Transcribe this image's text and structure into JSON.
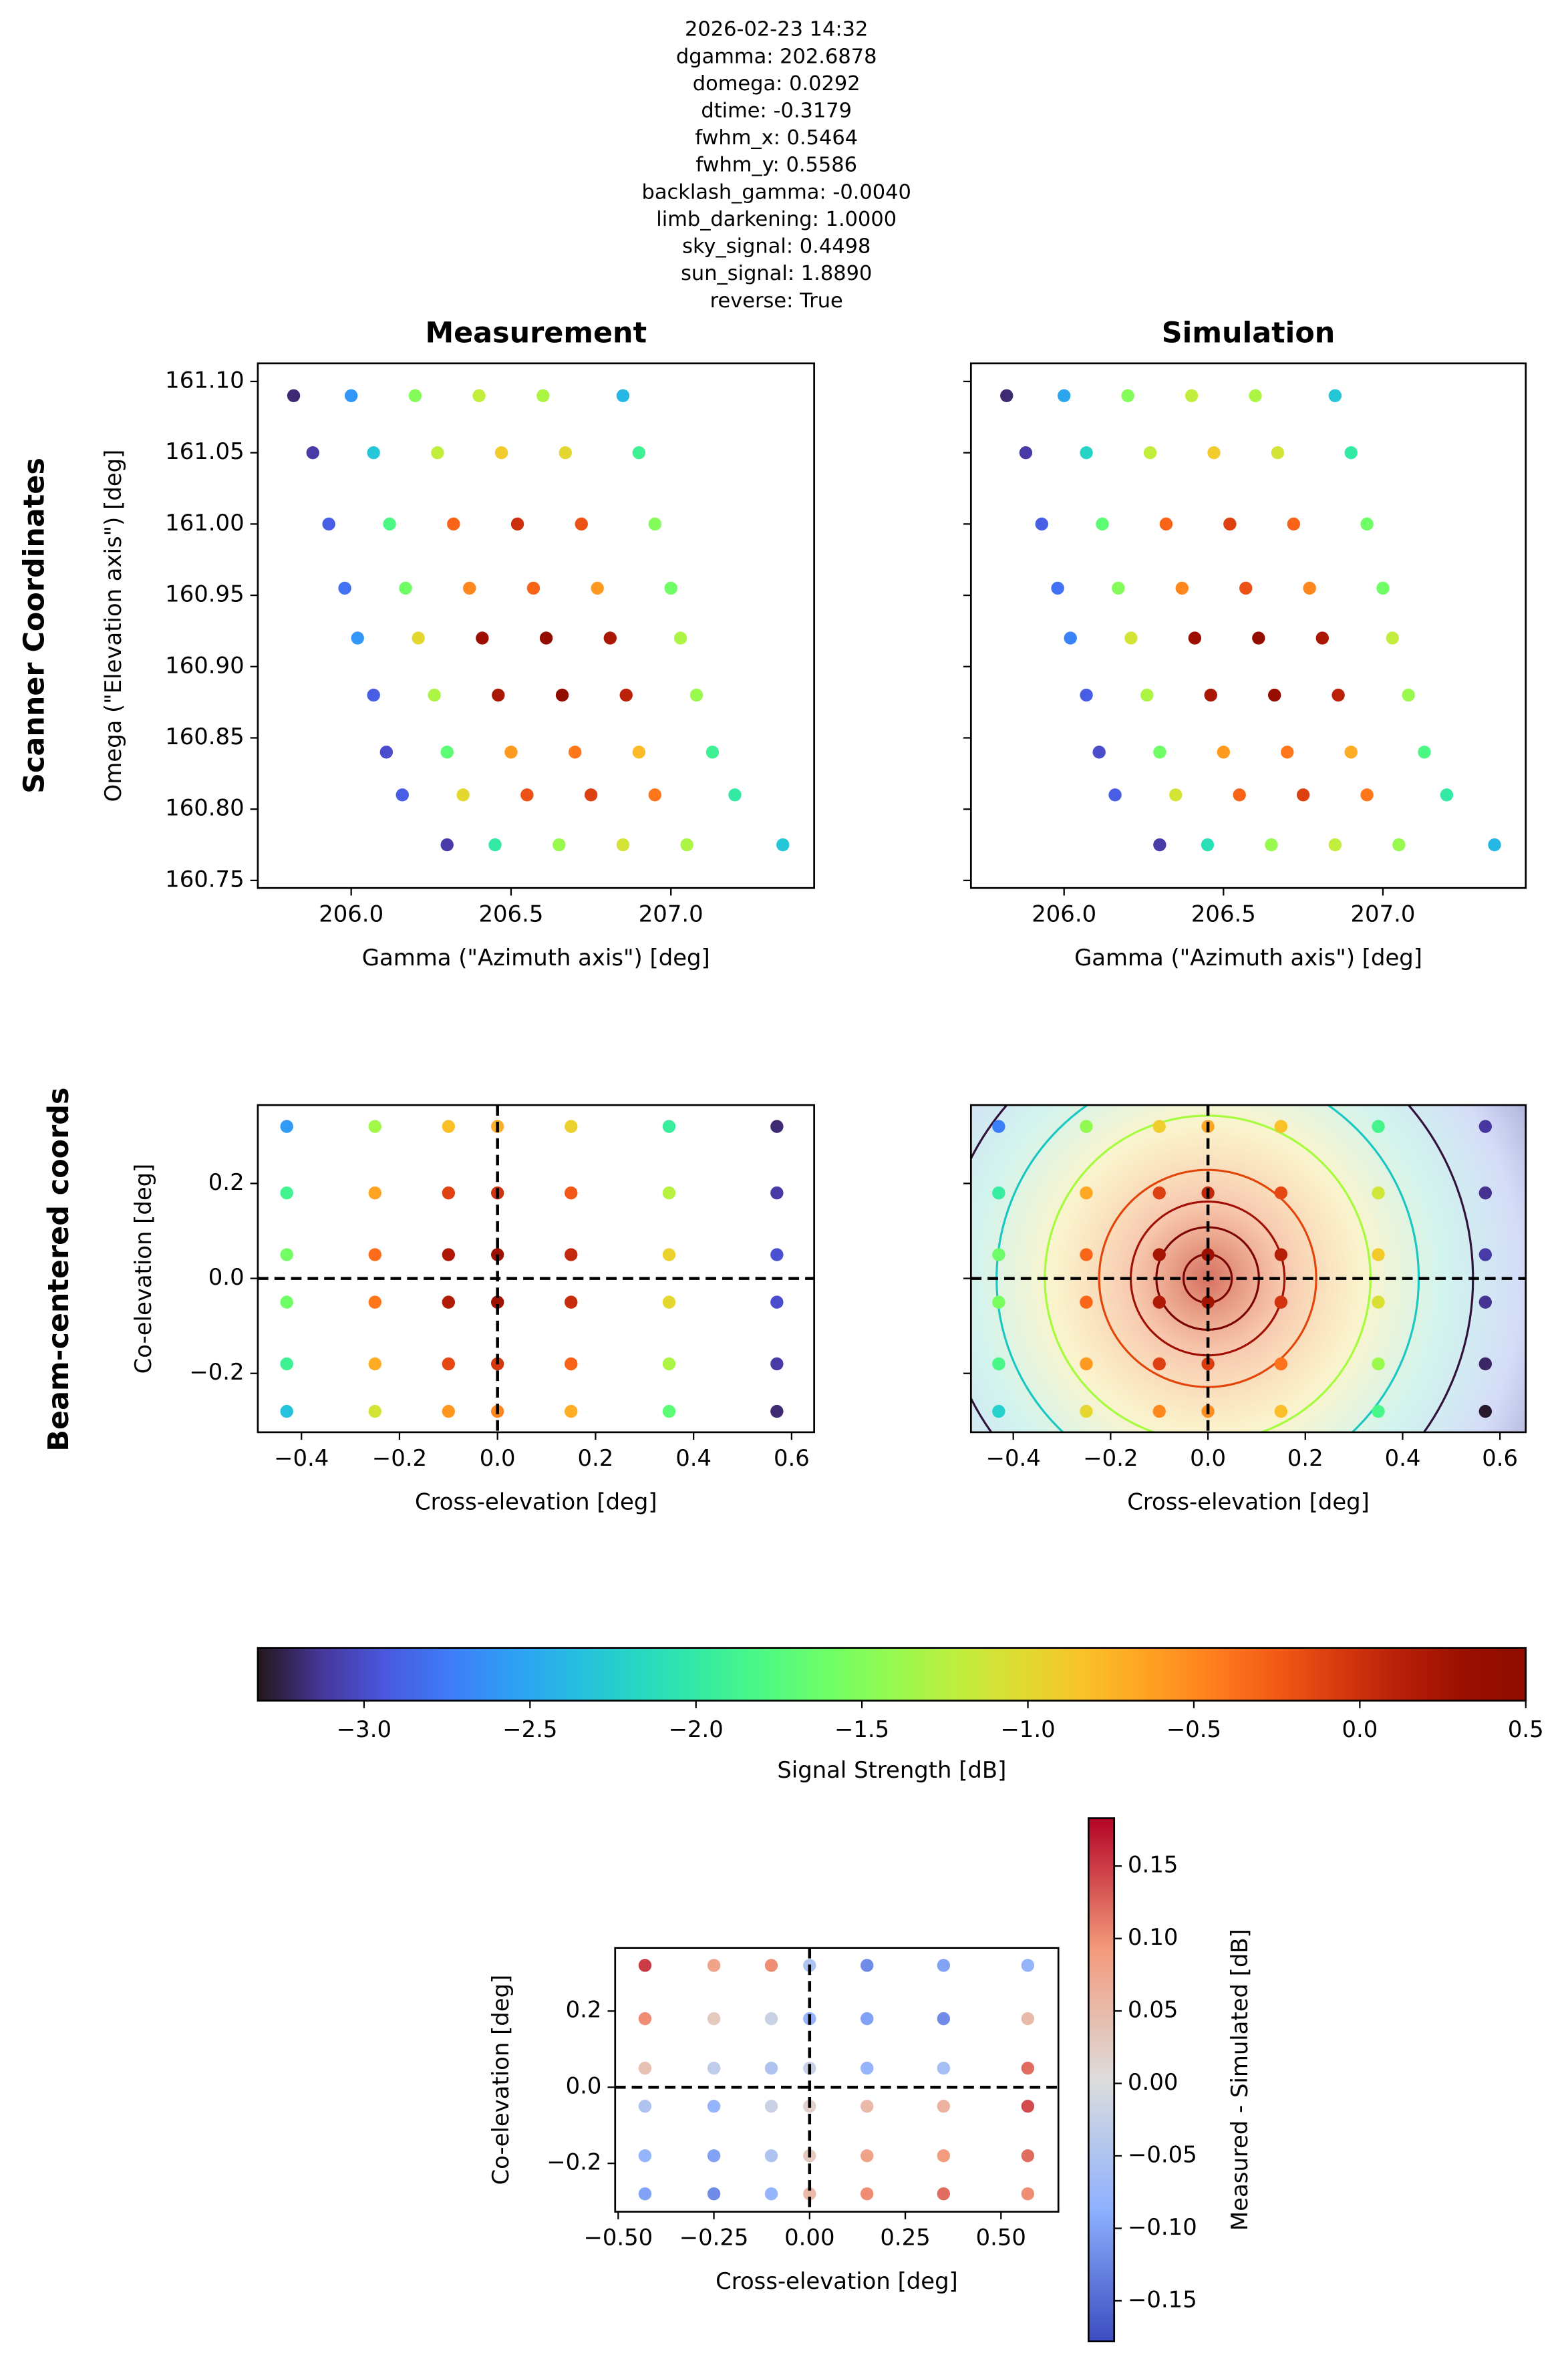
{
  "figure": {
    "header_lines": [
      "2026-02-23 14:32",
      "dgamma: 202.6878",
      "domega: 0.0292",
      "dtime: -0.3179",
      "fwhm_x: 0.5464",
      "fwhm_y: 0.5586",
      "backlash_gamma: -0.0040",
      "limb_darkening: 1.0000",
      "sky_signal: 0.4498",
      "sun_signal: 1.8890",
      "reverse: True"
    ],
    "row_labels": [
      "Scanner Coordinates",
      "Beam-centered coords"
    ]
  },
  "chart_data": [
    {
      "type": "scatter",
      "title": "Measurement",
      "xlabel": "Gamma (\"Azimuth axis\") [deg]",
      "ylabel": "Omega (\"Elevation axis\") [deg]",
      "colormap": "turbo",
      "clim": [
        -3.32,
        0.5
      ],
      "xlim": [
        205.708,
        207.448
      ],
      "ylim": [
        160.7447,
        161.1127
      ],
      "xticks": [
        {
          "value": 206,
          "label": "206.0"
        },
        206.5,
        {
          "value": 207,
          "label": "207.0"
        }
      ],
      "yticks": [
        {
          "value": 160.75,
          "label": "160.75"
        },
        {
          "value": 160.8,
          "label": "160.80"
        },
        160.85,
        {
          "value": 160.9,
          "label": "160.90"
        },
        160.95,
        {
          "value": 161,
          "label": "161.00"
        },
        161.05,
        {
          "value": 161.1,
          "label": "161.10"
        }
      ],
      "x": [
        205.82,
        206.0,
        206.2,
        206.4,
        206.6,
        206.85,
        205.88,
        206.07,
        206.27,
        206.47,
        206.67,
        206.9,
        205.93,
        206.12,
        206.32,
        206.52,
        206.72,
        206.95,
        205.98,
        206.17,
        206.37,
        206.57,
        206.77,
        207.0,
        206.02,
        206.21,
        206.41,
        206.61,
        206.81,
        207.03,
        206.07,
        206.26,
        206.46,
        206.66,
        206.86,
        207.08,
        206.11,
        206.3,
        206.5,
        206.7,
        206.9,
        207.13,
        206.16,
        206.35,
        206.55,
        206.75,
        206.95,
        207.2,
        206.3,
        206.45,
        206.65,
        206.85,
        207.05,
        207.35
      ],
      "y": [
        161.09,
        161.09,
        161.09,
        161.09,
        161.09,
        161.09,
        161.05,
        161.05,
        161.05,
        161.05,
        161.05,
        161.05,
        161.0,
        161.0,
        161.0,
        161.0,
        161.0,
        161.0,
        160.955,
        160.955,
        160.955,
        160.955,
        160.955,
        160.955,
        160.92,
        160.92,
        160.92,
        160.92,
        160.92,
        160.92,
        160.88,
        160.88,
        160.88,
        160.88,
        160.88,
        160.88,
        160.84,
        160.84,
        160.84,
        160.84,
        160.84,
        160.84,
        160.81,
        160.81,
        160.81,
        160.81,
        160.81,
        160.81,
        160.775,
        160.775,
        160.775,
        160.775,
        160.775,
        160.775
      ],
      "c": [
        -3.2,
        -2.6,
        -1.5,
        -1.2,
        -1.3,
        -2.4,
        -3.1,
        -2.3,
        -1.2,
        -0.9,
        -1.0,
        -1.9,
        -2.9,
        -1.8,
        -0.3,
        0.0,
        -0.2,
        -1.5,
        -2.8,
        -1.6,
        -0.5,
        -0.3,
        -0.6,
        -1.6,
        -2.6,
        -1.0,
        0.3,
        0.4,
        0.2,
        -1.3,
        -2.9,
        -1.3,
        0.2,
        0.4,
        0.1,
        -1.4,
        -3.0,
        -1.7,
        -0.6,
        -0.4,
        -0.8,
        -1.9,
        -2.9,
        -1.0,
        -0.2,
        -0.1,
        -0.4,
        -2.0,
        -3.1,
        -2.0,
        -1.4,
        -1.1,
        -1.3,
        -2.3
      ]
    },
    {
      "type": "scatter",
      "title": "Simulation",
      "xlabel": "Gamma (\"Azimuth axis\") [deg]",
      "ytick_labels": false,
      "colormap": "turbo",
      "clim": [
        -3.32,
        0.5
      ],
      "xlim": [
        205.708,
        207.448
      ],
      "ylim": [
        160.7447,
        161.1127
      ],
      "xticks": [
        {
          "value": 206,
          "label": "206.0"
        },
        206.5,
        {
          "value": 207,
          "label": "207.0"
        }
      ],
      "yticks": [
        160.75,
        160.8,
        160.85,
        160.9,
        160.95,
        161,
        161.05,
        161.1
      ],
      "x": [
        205.82,
        206.0,
        206.2,
        206.4,
        206.6,
        206.85,
        205.88,
        206.07,
        206.27,
        206.47,
        206.67,
        206.9,
        205.93,
        206.12,
        206.32,
        206.52,
        206.72,
        206.95,
        205.98,
        206.17,
        206.37,
        206.57,
        206.77,
        207.0,
        206.02,
        206.21,
        206.41,
        206.61,
        206.81,
        207.03,
        206.07,
        206.26,
        206.46,
        206.66,
        206.86,
        207.08,
        206.11,
        206.3,
        206.5,
        206.7,
        206.9,
        207.13,
        206.16,
        206.35,
        206.55,
        206.75,
        206.95,
        207.2,
        206.3,
        206.45,
        206.65,
        206.85,
        207.05,
        207.35
      ],
      "y": [
        161.09,
        161.09,
        161.09,
        161.09,
        161.09,
        161.09,
        161.05,
        161.05,
        161.05,
        161.05,
        161.05,
        161.05,
        161.0,
        161.0,
        161.0,
        161.0,
        161.0,
        161.0,
        160.955,
        160.955,
        160.955,
        160.955,
        160.955,
        160.955,
        160.92,
        160.92,
        160.92,
        160.92,
        160.92,
        160.92,
        160.88,
        160.88,
        160.88,
        160.88,
        160.88,
        160.88,
        160.84,
        160.84,
        160.84,
        160.84,
        160.84,
        160.84,
        160.81,
        160.81,
        160.81,
        160.81,
        160.81,
        160.81,
        160.775,
        160.775,
        160.775,
        160.775,
        160.775,
        160.775
      ],
      "c": [
        -3.2,
        -2.5,
        -1.5,
        -1.2,
        -1.3,
        -2.3,
        -3.1,
        -2.2,
        -1.2,
        -0.9,
        -1.1,
        -2.0,
        -2.9,
        -1.7,
        -0.3,
        -0.1,
        -0.3,
        -1.6,
        -2.8,
        -1.5,
        -0.5,
        -0.2,
        -0.5,
        -1.6,
        -2.7,
        -1.1,
        0.3,
        0.4,
        0.2,
        -1.2,
        -2.9,
        -1.3,
        0.2,
        0.35,
        0.1,
        -1.4,
        -3.0,
        -1.6,
        -0.6,
        -0.4,
        -0.7,
        -1.8,
        -2.9,
        -1.1,
        -0.3,
        -0.1,
        -0.4,
        -2.0,
        -3.1,
        -2.1,
        -1.4,
        -1.2,
        -1.4,
        -2.4
      ]
    },
    {
      "type": "scatter",
      "xlabel": "Cross-elevation [deg]",
      "ylabel": "Co-elevation [deg]",
      "colormap": "turbo",
      "clim": [
        -3.32,
        0.5
      ],
      "xlim": [
        -0.489,
        0.646
      ],
      "ylim": [
        -0.324,
        0.365
      ],
      "xticks": [
        {
          "value": -0.4,
          "label": "−0.4"
        },
        {
          "value": -0.2,
          "label": "−0.2"
        },
        {
          "value": 0,
          "label": "0.0"
        },
        0.2,
        0.4,
        0.6
      ],
      "yticks": [
        {
          "value": -0.2,
          "label": "−0.2"
        },
        {
          "value": 0,
          "label": "0.0"
        },
        0.2
      ],
      "hlines": [
        0
      ],
      "vlines": [
        0
      ],
      "x": [
        -0.43,
        -0.25,
        -0.1,
        0.0,
        0.15,
        0.35,
        0.57,
        -0.43,
        -0.25,
        -0.1,
        0.0,
        0.15,
        0.35,
        0.57,
        -0.43,
        -0.25,
        -0.1,
        0.0,
        0.15,
        0.35,
        0.57,
        -0.43,
        -0.25,
        -0.1,
        0.0,
        0.15,
        0.35,
        0.57,
        -0.43,
        -0.25,
        -0.1,
        0.0,
        0.15,
        0.35,
        0.57,
        -0.43,
        -0.25,
        -0.1,
        0.0,
        0.15,
        0.35,
        0.57
      ],
      "y": [
        0.32,
        0.32,
        0.32,
        0.32,
        0.32,
        0.32,
        0.32,
        0.18,
        0.18,
        0.18,
        0.18,
        0.18,
        0.18,
        0.18,
        0.05,
        0.05,
        0.05,
        0.05,
        0.05,
        0.05,
        0.05,
        -0.05,
        -0.05,
        -0.05,
        -0.05,
        -0.05,
        -0.05,
        -0.05,
        -0.18,
        -0.18,
        -0.18,
        -0.18,
        -0.18,
        -0.18,
        -0.18,
        -0.28,
        -0.28,
        -0.28,
        -0.28,
        -0.28,
        -0.28,
        -0.28
      ],
      "c": [
        -2.57,
        -1.35,
        -0.82,
        -0.72,
        -0.95,
        -1.95,
        -3.2,
        -1.87,
        -0.65,
        -0.12,
        -0.02,
        -0.25,
        -1.25,
        -3.1,
        -1.58,
        -0.35,
        0.18,
        0.28,
        0.05,
        -0.95,
        -2.98,
        -1.6,
        -0.4,
        0.15,
        0.27,
        0.03,
        -1.0,
        -3.0,
        -1.9,
        -0.7,
        -0.15,
        -0.05,
        -0.3,
        -1.3,
        -3.1,
        -2.33,
        -1.11,
        -0.58,
        -0.48,
        -0.71,
        -1.71,
        -3.2
      ]
    },
    {
      "type": "scatter",
      "xlabel": "Cross-elevation [deg]",
      "ytick_labels": false,
      "background": "beam-model",
      "colormap": "turbo",
      "clim": [
        -3.32,
        0.5
      ],
      "xlim": [
        -0.487,
        0.653
      ],
      "ylim": [
        -0.324,
        0.365
      ],
      "xticks": [
        {
          "value": -0.4,
          "label": "−0.4"
        },
        {
          "value": -0.2,
          "label": "−0.2"
        },
        {
          "value": 0,
          "label": "0.0"
        },
        0.2,
        0.4,
        0.6
      ],
      "yticks": [
        -0.2,
        0,
        0.2
      ],
      "hlines": [
        0
      ],
      "vlines": [
        0
      ],
      "x": [
        -0.43,
        -0.25,
        -0.1,
        0.0,
        0.15,
        0.35,
        0.57,
        -0.43,
        -0.25,
        -0.1,
        0.0,
        0.15,
        0.35,
        0.57,
        -0.43,
        -0.25,
        -0.1,
        0.0,
        0.15,
        0.35,
        0.57,
        -0.43,
        -0.25,
        -0.1,
        0.0,
        0.15,
        0.35,
        0.57,
        -0.43,
        -0.25,
        -0.1,
        0.0,
        0.15,
        0.35,
        0.57,
        -0.43,
        -0.25,
        -0.1,
        0.0,
        0.15,
        0.35,
        0.57
      ],
      "y": [
        0.32,
        0.32,
        0.32,
        0.32,
        0.32,
        0.32,
        0.32,
        0.18,
        0.18,
        0.18,
        0.18,
        0.18,
        0.18,
        0.18,
        0.05,
        0.05,
        0.05,
        0.05,
        0.05,
        0.05,
        0.05,
        -0.05,
        -0.05,
        -0.05,
        -0.05,
        -0.05,
        -0.05,
        -0.05,
        -0.18,
        -0.18,
        -0.18,
        -0.18,
        -0.18,
        -0.18,
        -0.18,
        -0.28,
        -0.28,
        -0.28,
        -0.28,
        -0.28,
        -0.28,
        -0.28
      ],
      "c": [
        -2.72,
        -1.43,
        -0.92,
        -0.67,
        -0.83,
        -1.85,
        -3.12,
        -1.97,
        -0.68,
        -0.1,
        0.06,
        -0.15,
        -1.13,
        -3.15,
        -1.62,
        -0.32,
        0.23,
        0.3,
        0.13,
        -0.89,
        -3.1,
        -1.55,
        -0.32,
        0.17,
        0.25,
        -0.02,
        -1.06,
        -3.14,
        -1.82,
        -0.6,
        -0.1,
        -0.08,
        -0.38,
        -1.39,
        -3.22,
        -2.23,
        -0.99,
        -0.5,
        -0.53,
        -0.81,
        -1.83,
        -3.3
      ]
    },
    {
      "type": "colorbar",
      "orientation": "horizontal",
      "colormap": "turbo",
      "label": "Signal Strength [dB]",
      "lim": [
        -3.32,
        0.5
      ],
      "ticks": [
        {
          "value": -3,
          "label": "−3.0"
        },
        {
          "value": -2.5,
          "label": "−2.5"
        },
        {
          "value": -2,
          "label": "−2.0"
        },
        {
          "value": -1.5,
          "label": "−1.5"
        },
        {
          "value": -1,
          "label": "−1.0"
        },
        {
          "value": -0.5,
          "label": "−0.5"
        },
        {
          "value": 0,
          "label": "0.0"
        },
        0.5
      ]
    },
    {
      "type": "scatter",
      "xlabel": "Cross-elevation [deg]",
      "ylabel": "Co-elevation [deg]",
      "colormap": "coolwarm",
      "clim": [
        -0.178,
        0.183
      ],
      "xlim": [
        -0.508,
        0.65
      ],
      "ylim": [
        -0.327,
        0.366
      ],
      "xticks": [
        {
          "value": -0.5,
          "label": "−0.50"
        },
        {
          "value": -0.25,
          "label": "−0.25"
        },
        {
          "value": 0,
          "label": "0.00"
        },
        0.25,
        {
          "value": 0.5,
          "label": "0.50"
        }
      ],
      "yticks": [
        {
          "value": -0.2,
          "label": "−0.2"
        },
        {
          "value": 0,
          "label": "0.0"
        },
        0.2
      ],
      "hlines": [
        0
      ],
      "vlines": [
        0
      ],
      "x": [
        -0.43,
        -0.25,
        -0.1,
        0.0,
        0.15,
        0.35,
        0.57,
        -0.43,
        -0.25,
        -0.1,
        0.0,
        0.15,
        0.35,
        0.57,
        -0.43,
        -0.25,
        -0.1,
        0.0,
        0.15,
        0.35,
        0.57,
        -0.43,
        -0.25,
        -0.1,
        0.0,
        0.15,
        0.35,
        0.57,
        -0.43,
        -0.25,
        -0.1,
        0.0,
        0.15,
        0.35,
        0.57,
        -0.43,
        -0.25,
        -0.1,
        0.0,
        0.15,
        0.35,
        0.57
      ],
      "y": [
        0.32,
        0.32,
        0.32,
        0.32,
        0.32,
        0.32,
        0.32,
        0.18,
        0.18,
        0.18,
        0.18,
        0.18,
        0.18,
        0.18,
        0.05,
        0.05,
        0.05,
        0.05,
        0.05,
        0.05,
        0.05,
        -0.05,
        -0.05,
        -0.05,
        -0.05,
        -0.05,
        -0.05,
        -0.05,
        -0.18,
        -0.18,
        -0.18,
        -0.18,
        -0.18,
        -0.18,
        -0.18,
        -0.28,
        -0.28,
        -0.28,
        -0.28,
        -0.28,
        -0.28,
        -0.28
      ],
      "c": [
        0.15,
        0.08,
        0.1,
        -0.05,
        -0.12,
        -0.1,
        -0.08,
        0.1,
        0.03,
        -0.02,
        -0.08,
        -0.1,
        -0.12,
        0.05,
        0.04,
        -0.03,
        -0.05,
        -0.02,
        -0.08,
        -0.06,
        0.12,
        -0.05,
        -0.08,
        -0.02,
        0.02,
        0.05,
        0.06,
        0.14,
        -0.08,
        -0.1,
        -0.05,
        0.03,
        0.08,
        0.09,
        0.12,
        -0.1,
        -0.12,
        -0.08,
        0.05,
        0.1,
        0.12,
        0.1
      ]
    },
    {
      "type": "colorbar",
      "orientation": "vertical",
      "colormap": "coolwarm",
      "label": "Measured - Simulated [dB]",
      "lim": [
        -0.178,
        0.183
      ],
      "ticks": [
        {
          "value": -0.15,
          "label": "−0.15"
        },
        {
          "value": -0.1,
          "label": "−0.10"
        },
        {
          "value": -0.05,
          "label": "−0.05"
        },
        {
          "value": 0,
          "label": "0.00"
        },
        0.05,
        {
          "value": 0.1,
          "label": "0.10"
        },
        0.15
      ]
    }
  ]
}
